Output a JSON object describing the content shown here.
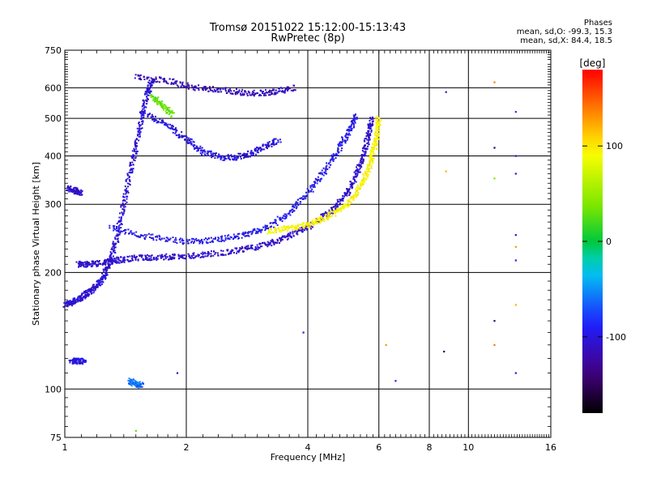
{
  "header": {
    "title_line1": "Tromsø 20151022 15:12:00-15:13:43",
    "title_line2": "RwPretec (8p)"
  },
  "phase_info": {
    "heading": "Phases",
    "line_o": "mean, sd,O: -99.3, 15.3",
    "line_x": "mean, sd,X:  84.4, 18.5"
  },
  "colorbar": {
    "unit": "[deg]",
    "ticks": [
      "100",
      "0",
      "-100"
    ],
    "tick_values": [
      100,
      0,
      -100
    ],
    "range": [
      -180,
      180
    ]
  },
  "chart_data": {
    "type": "scatter",
    "xlabel": "Frequency [MHz]",
    "ylabel": "Stationary phase Virtual Height [km]",
    "x_scale": "log",
    "y_scale": "log",
    "xlim": [
      1,
      16
    ],
    "ylim": [
      75,
      750
    ],
    "x_ticks": [
      1,
      2,
      4,
      6,
      8,
      10,
      16
    ],
    "x_tick_labels": [
      "1",
      "2",
      "4",
      "6",
      "8",
      "10",
      "16"
    ],
    "y_ticks": [
      75,
      100,
      200,
      300,
      400,
      500,
      600,
      750
    ],
    "y_tick_labels": [
      "75",
      "100",
      "200",
      "300",
      "400",
      "500",
      "600",
      "750"
    ],
    "grid": true,
    "traces": [
      {
        "mode": "O",
        "phase_deg": -105,
        "points": [
          [
            1.0,
            165
          ],
          [
            1.05,
            168
          ],
          [
            1.1,
            172
          ],
          [
            1.15,
            178
          ],
          [
            1.2,
            185
          ],
          [
            1.25,
            195
          ],
          [
            1.3,
            215
          ],
          [
            1.35,
            250
          ],
          [
            1.4,
            300
          ],
          [
            1.45,
            360
          ],
          [
            1.5,
            420
          ],
          [
            1.55,
            500
          ],
          [
            1.6,
            580
          ],
          [
            1.65,
            630
          ]
        ]
      },
      {
        "mode": "O",
        "phase_deg": -108,
        "points": [
          [
            1.08,
            210
          ],
          [
            1.15,
            210
          ],
          [
            1.25,
            212
          ],
          [
            1.35,
            215
          ],
          [
            1.5,
            218
          ],
          [
            1.7,
            219
          ],
          [
            1.9,
            220
          ],
          [
            2.2,
            222
          ],
          [
            2.6,
            227
          ],
          [
            3.0,
            233
          ],
          [
            3.4,
            242
          ],
          [
            3.8,
            255
          ],
          [
            4.2,
            270
          ],
          [
            4.6,
            290
          ],
          [
            5.0,
            320
          ],
          [
            5.3,
            360
          ],
          [
            5.5,
            400
          ],
          [
            5.65,
            450
          ],
          [
            5.75,
            500
          ]
        ]
      },
      {
        "mode": "O",
        "phase_deg": -95,
        "points": [
          [
            1.3,
            260
          ],
          [
            1.6,
            248
          ],
          [
            2.0,
            240
          ],
          [
            2.4,
            243
          ],
          [
            2.8,
            250
          ],
          [
            3.2,
            262
          ],
          [
            3.6,
            285
          ],
          [
            4.0,
            320
          ],
          [
            4.4,
            365
          ],
          [
            4.8,
            420
          ],
          [
            5.1,
            470
          ],
          [
            5.3,
            510
          ]
        ]
      },
      {
        "mode": "X",
        "phase_deg": 95,
        "points": [
          [
            3.2,
            256
          ],
          [
            3.6,
            260
          ],
          [
            4.0,
            266
          ],
          [
            4.4,
            276
          ],
          [
            4.8,
            290
          ],
          [
            5.2,
            312
          ],
          [
            5.5,
            345
          ],
          [
            5.7,
            380
          ],
          [
            5.85,
            420
          ],
          [
            5.95,
            460
          ],
          [
            6.0,
            500
          ]
        ]
      },
      {
        "mode": "O",
        "phase_deg": -115,
        "points": [
          [
            1.5,
            640
          ],
          [
            1.8,
            625
          ],
          [
            2.1,
            600
          ],
          [
            2.5,
            590
          ],
          [
            2.9,
            580
          ],
          [
            3.3,
            585
          ],
          [
            3.7,
            600
          ]
        ]
      },
      {
        "mode": "O",
        "phase_deg": -100,
        "points": [
          [
            1.55,
            520
          ],
          [
            1.8,
            480
          ],
          [
            2.0,
            440
          ],
          [
            2.2,
            410
          ],
          [
            2.5,
            395
          ],
          [
            2.8,
            400
          ],
          [
            3.1,
            420
          ],
          [
            3.4,
            440
          ]
        ]
      },
      {
        "mode": "X",
        "phase_deg": 30,
        "points": [
          [
            1.65,
            570
          ],
          [
            1.75,
            540
          ],
          [
            1.85,
            510
          ]
        ]
      },
      {
        "mode": "O",
        "phase_deg": -110,
        "points": [
          [
            1.02,
            330
          ],
          [
            1.06,
            325
          ],
          [
            1.1,
            320
          ]
        ]
      },
      {
        "mode": "O",
        "phase_deg": -100,
        "points": [
          [
            1.04,
            118
          ],
          [
            1.08,
            118
          ],
          [
            1.12,
            118
          ]
        ]
      },
      {
        "mode": "O",
        "phase_deg": -60,
        "points": [
          [
            1.45,
            105
          ],
          [
            1.5,
            103
          ],
          [
            1.55,
            102
          ]
        ]
      }
    ],
    "isolated_points": [
      {
        "x": 13.1,
        "y": 520,
        "phase_deg": -80
      },
      {
        "x": 13.1,
        "y": 400,
        "phase_deg": -100
      },
      {
        "x": 13.1,
        "y": 360,
        "phase_deg": -105
      },
      {
        "x": 13.1,
        "y": 250,
        "phase_deg": -110
      },
      {
        "x": 13.1,
        "y": 233,
        "phase_deg": 130
      },
      {
        "x": 13.1,
        "y": 215,
        "phase_deg": -90
      },
      {
        "x": 13.1,
        "y": 165,
        "phase_deg": 120
      },
      {
        "x": 13.1,
        "y": 110,
        "phase_deg": -100
      },
      {
        "x": 11.6,
        "y": 620,
        "phase_deg": 140
      },
      {
        "x": 11.6,
        "y": 420,
        "phase_deg": -150
      },
      {
        "x": 11.6,
        "y": 350,
        "phase_deg": 40
      },
      {
        "x": 11.6,
        "y": 150,
        "phase_deg": -150
      },
      {
        "x": 11.6,
        "y": 130,
        "phase_deg": 140
      },
      {
        "x": 8.8,
        "y": 585,
        "phase_deg": -105
      },
      {
        "x": 8.8,
        "y": 365,
        "phase_deg": 120
      },
      {
        "x": 8.7,
        "y": 125,
        "phase_deg": -150
      },
      {
        "x": 6.6,
        "y": 105,
        "phase_deg": -90
      },
      {
        "x": 6.25,
        "y": 130,
        "phase_deg": 130
      },
      {
        "x": 1.9,
        "y": 110,
        "phase_deg": -110
      },
      {
        "x": 1.5,
        "y": 78,
        "phase_deg": 30
      },
      {
        "x": 3.9,
        "y": 140,
        "phase_deg": -100
      }
    ]
  }
}
